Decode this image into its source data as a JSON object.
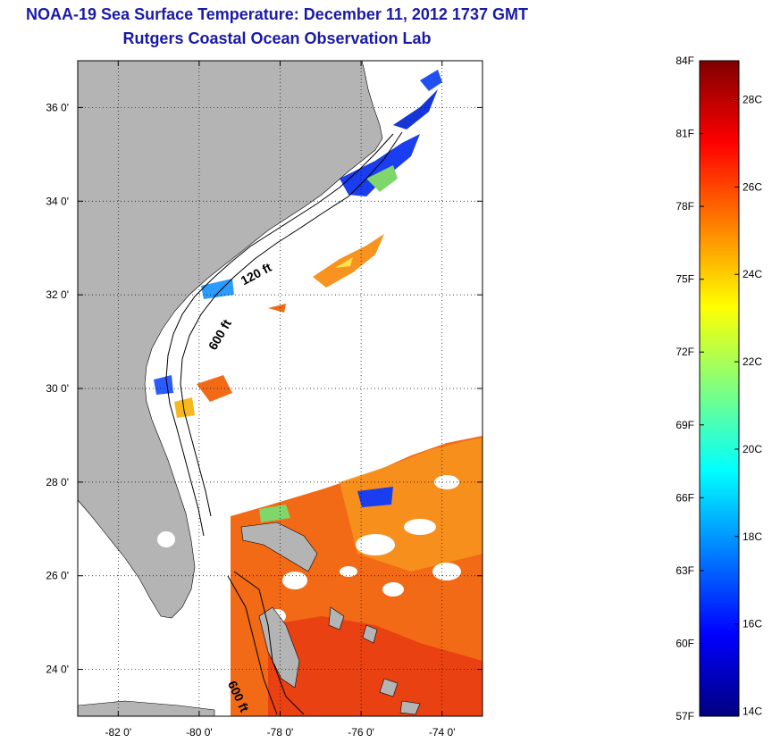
{
  "title": "NOAA-19 Sea Surface Temperature:  December 11, 2012 1737 GMT",
  "subtitle": "Rutgers Coastal Ocean Observation Lab",
  "map": {
    "lon_range": [
      -83,
      -73
    ],
    "lat_range": [
      23,
      37
    ],
    "lon_ticks": [
      {
        "value": -82,
        "label": "-82 0'"
      },
      {
        "value": -80,
        "label": "-80 0'"
      },
      {
        "value": -78,
        "label": "-78 0'"
      },
      {
        "value": -76,
        "label": "-76 0'"
      },
      {
        "value": -74,
        "label": "-74 0'"
      }
    ],
    "lat_ticks": [
      {
        "value": 24,
        "label": "24 0'"
      },
      {
        "value": 26,
        "label": "26 0'"
      },
      {
        "value": 28,
        "label": "28 0'"
      },
      {
        "value": 30,
        "label": "30 0'"
      },
      {
        "value": 32,
        "label": "32 0'"
      },
      {
        "value": 34,
        "label": "34 0'"
      },
      {
        "value": 36,
        "label": "36 0'"
      }
    ],
    "grid": true,
    "land_color": "#b4b4b4",
    "contour_labels": [
      {
        "text": "120 ft",
        "lon": -78.9,
        "lat": 32.2
      },
      {
        "text": "600 ft",
        "lon": -79.6,
        "lat": 30.8
      },
      {
        "text": "600 ft",
        "lon": -79.3,
        "lat": 23.7
      }
    ]
  },
  "colorbar": {
    "range_f": [
      57,
      84
    ],
    "fahrenheit_labels": [
      "84F",
      "81F",
      "78F",
      "75F",
      "72F",
      "69F",
      "66F",
      "63F",
      "60F",
      "57F"
    ],
    "celsius_labels": [
      "28C",
      "26C",
      "24C",
      "22C",
      "20C",
      "18C",
      "16C",
      "14C"
    ],
    "colors": [
      "#00007f",
      "#0000ff",
      "#007fff",
      "#00ffff",
      "#7fff7f",
      "#ffff00",
      "#ff7f00",
      "#ff0000",
      "#7f0000"
    ]
  }
}
